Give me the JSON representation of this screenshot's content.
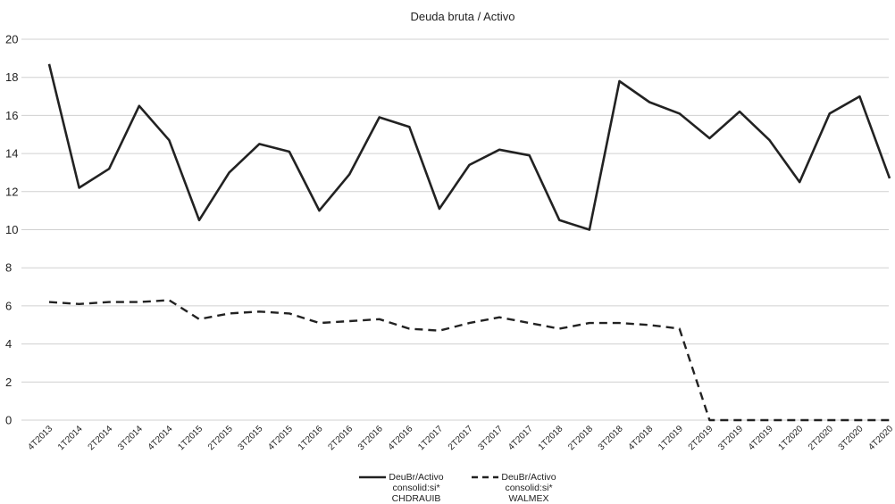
{
  "chart_data": {
    "type": "line",
    "title": "Deuda bruta / Activo",
    "xlabel": "",
    "ylabel": "",
    "ylim": [
      0,
      20
    ],
    "yticks": [
      0,
      2,
      4,
      6,
      8,
      10,
      12,
      14,
      16,
      18,
      20
    ],
    "grid": true,
    "legend_position": "bottom",
    "categories": [
      "4T2013",
      "1T2014",
      "2T2014",
      "3T2014",
      "4T2014",
      "1T2015",
      "2T2015",
      "3T2015",
      "4T2015",
      "1T2016",
      "2T2016",
      "3T2016",
      "4T2016",
      "1T2017",
      "2T2017",
      "3T2017",
      "4T2017",
      "1T2018",
      "2T2018",
      "3T2018",
      "4T2018",
      "1T2019",
      "2T2019",
      "3T2019",
      "4T2019",
      "1T2020",
      "2T2020",
      "3T2020",
      "4T2020"
    ],
    "series": [
      {
        "name": "DeuBr/Activo consolid:si* CHDRAUIB",
        "legend_lines": [
          "DeuBr/Activo",
          "consolid:si*",
          "CHDRAUIB"
        ],
        "style": "solid",
        "color": "#222222",
        "values": [
          18.7,
          12.2,
          13.2,
          16.5,
          14.7,
          10.5,
          13.0,
          14.5,
          14.1,
          11.0,
          12.9,
          15.9,
          15.4,
          11.1,
          13.4,
          14.2,
          13.9,
          10.5,
          10.0,
          17.8,
          16.7,
          16.1,
          14.8,
          16.2,
          14.7,
          12.5,
          16.1,
          17.0,
          12.7
        ]
      },
      {
        "name": "DeuBr/Activo consolid:si* WALMEX",
        "legend_lines": [
          "DeuBr/Activo",
          "consolid:si*",
          "WALMEX"
        ],
        "style": "dashed",
        "color": "#222222",
        "values": [
          6.2,
          6.1,
          6.2,
          6.2,
          6.3,
          5.3,
          5.6,
          5.7,
          5.6,
          5.1,
          5.2,
          5.3,
          4.8,
          4.7,
          5.1,
          5.4,
          5.1,
          4.8,
          5.1,
          5.1,
          5.0,
          4.8,
          0.0,
          0.0,
          0.0,
          0.0,
          0.0,
          0.0,
          0.0
        ]
      }
    ]
  }
}
